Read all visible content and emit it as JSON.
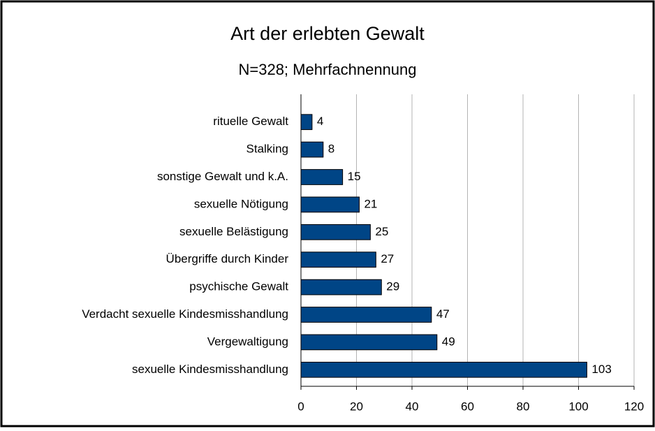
{
  "chart_data": {
    "type": "bar",
    "orientation": "horizontal",
    "title": "Art der erlebten Gewalt",
    "subtitle": "N=328; Mehrfachnennung",
    "categories": [
      "rituelle Gewalt",
      "Stalking",
      "sonstige Gewalt und k.A.",
      "sexuelle Nötigung",
      "sexuelle Belästigung",
      "Übergriffe durch Kinder",
      "psychische Gewalt",
      "Verdacht sexuelle Kindesmisshandlung",
      "Vergewaltigung",
      "sexuelle Kindesmisshandlung"
    ],
    "values": [
      4,
      8,
      15,
      21,
      25,
      27,
      29,
      47,
      49,
      103
    ],
    "color": "#004586",
    "xlim": [
      0,
      120
    ],
    "xticks": [
      0,
      20,
      40,
      60,
      80,
      100,
      120
    ],
    "grid": true
  }
}
